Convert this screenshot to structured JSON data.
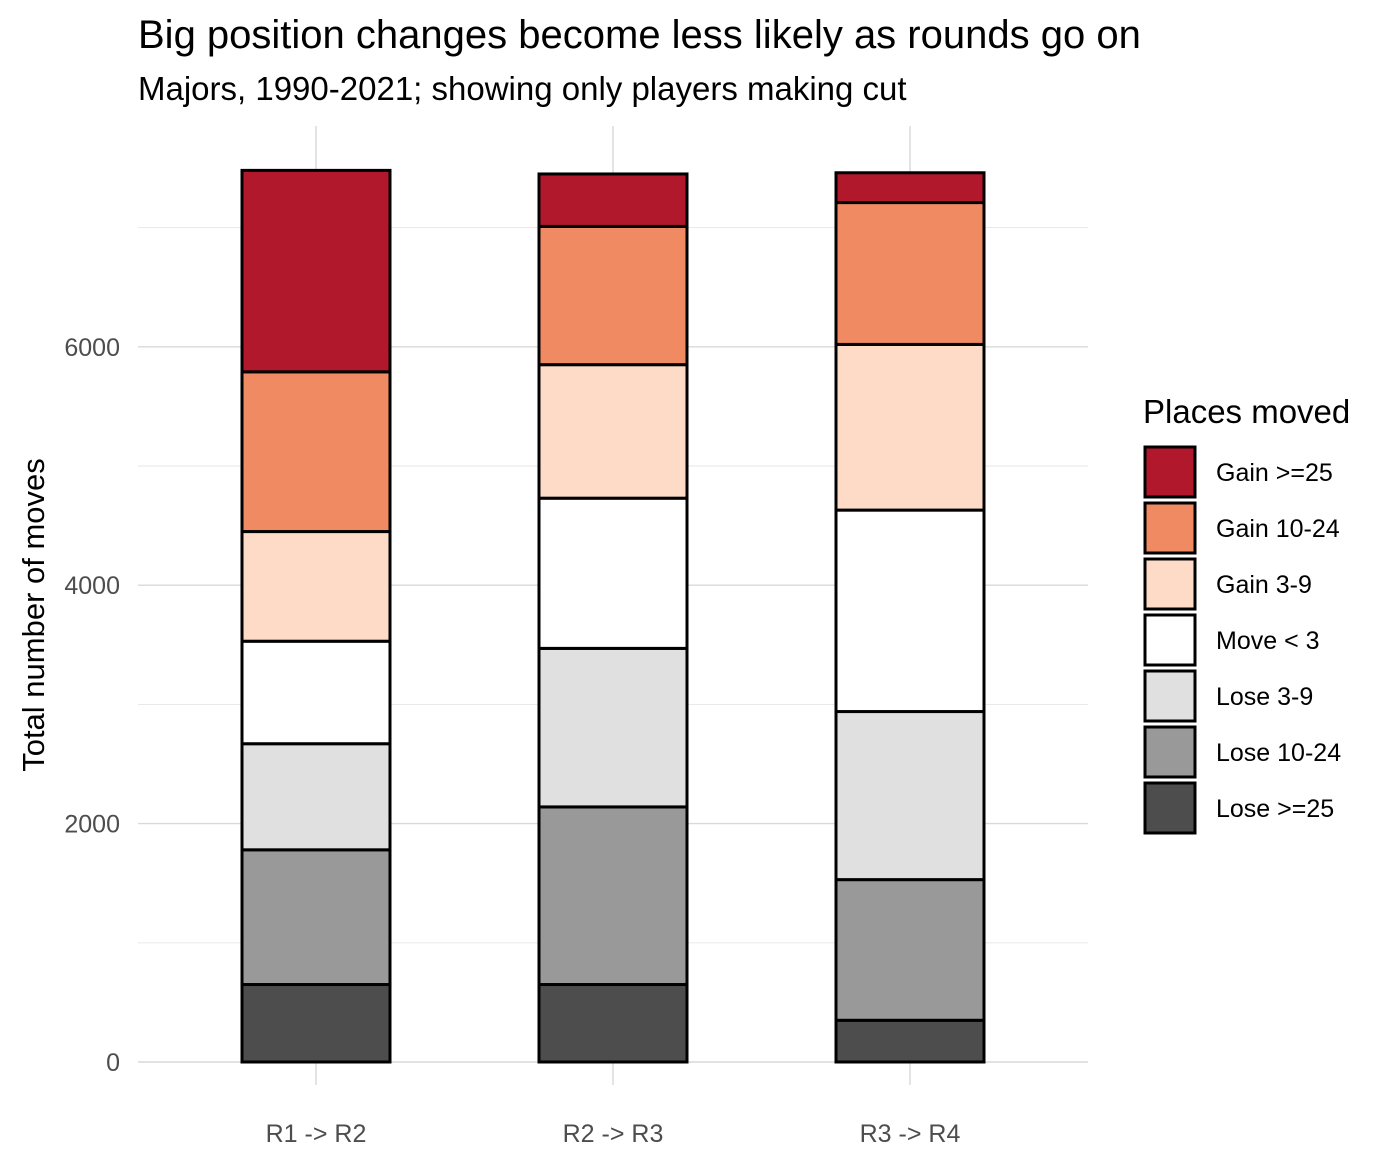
{
  "chart_data": {
    "type": "bar",
    "stacked": true,
    "title": "Big position changes become less likely as rounds go on",
    "subtitle": "Majors, 1990-2021; showing only players making cut",
    "xlabel": "",
    "ylabel": "Total number of moves",
    "ylim": [
      0,
      7480
    ],
    "yticks": [
      0,
      2000,
      4000,
      6000
    ],
    "grid": true,
    "categories": [
      "R1 -> R2",
      "R2 -> R3",
      "R3 -> R4"
    ],
    "legend": {
      "title": "Places moved",
      "position": "right"
    },
    "series": [
      {
        "name": "Lose >=25",
        "color": "#4d4d4d",
        "values": [
          650,
          650,
          350
        ]
      },
      {
        "name": "Lose 10-24",
        "color": "#999999",
        "values": [
          1130,
          1490,
          1180
        ]
      },
      {
        "name": "Lose 3-9",
        "color": "#e0e0e0",
        "values": [
          890,
          1330,
          1410
        ]
      },
      {
        "name": "Move < 3",
        "color": "#ffffff",
        "values": [
          860,
          1260,
          1690
        ]
      },
      {
        "name": "Gain 3-9",
        "color": "#fddbc7",
        "values": [
          920,
          1120,
          1390
        ]
      },
      {
        "name": "Gain 10-24",
        "color": "#ef8a62",
        "values": [
          1340,
          1160,
          1190
        ]
      },
      {
        "name": "Gain >=25",
        "color": "#b2182b",
        "values": [
          1690,
          440,
          250
        ]
      }
    ]
  }
}
